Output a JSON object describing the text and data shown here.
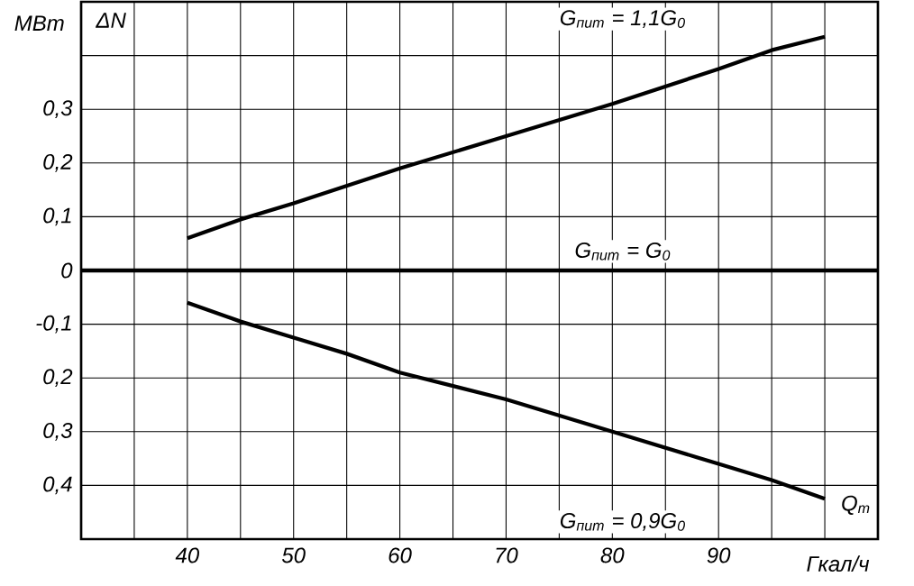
{
  "chart_data": {
    "type": "line",
    "xlabel": "Q$_{т}$",
    "ylabel": "ΔN",
    "annotations": [
      "МВт",
      "Гкал/ч"
    ],
    "xlim": [
      30,
      105
    ],
    "ylim": [
      -0.5,
      0.5
    ],
    "xticks": [
      {
        "value": 35,
        "label": null
      },
      40,
      {
        "value": 45,
        "label": null
      },
      50,
      {
        "value": 55,
        "label": null
      },
      60,
      {
        "value": 65,
        "label": null
      },
      70,
      {
        "value": 75,
        "label": null
      },
      80,
      {
        "value": 85,
        "label": null
      },
      90,
      {
        "value": 95,
        "label": null
      },
      {
        "value": 100,
        "label": null
      }
    ],
    "yticks": [
      {
        "value": 0.4,
        "label": null
      },
      {
        "value": 0.3,
        "label": "0,3"
      },
      {
        "value": 0.2,
        "label": "0,2"
      },
      {
        "value": 0.1,
        "label": "0,1"
      },
      0,
      {
        "value": -0.1,
        "label": "-0,1"
      },
      {
        "value": -0.2,
        "label": "0,2"
      },
      {
        "value": -0.3,
        "label": "0,3"
      },
      {
        "value": -0.4,
        "label": "0,4"
      }
    ],
    "grid": true,
    "legend": false,
    "marker": "none",
    "line_style": "solid",
    "series": [
      {
        "name": "G$_{пит}$ = 1,1G$_{0}$",
        "color": "#000000",
        "x": [
          40,
          45,
          50,
          60,
          70,
          80,
          90,
          95,
          100
        ],
        "values": [
          0.06,
          0.095,
          0.125,
          0.19,
          0.25,
          0.31,
          0.375,
          0.41,
          0.435
        ]
      },
      {
        "name": "G$_{пит}$ = G$_{0}$",
        "color": "#000000",
        "x": [
          30,
          105
        ],
        "values": [
          0,
          0
        ]
      },
      {
        "name": "G$_{пит}$ = 0,9G$_{0}$",
        "color": "#000000",
        "x": [
          40,
          45,
          50,
          55,
          60,
          70,
          80,
          90,
          95,
          100
        ],
        "values": [
          -0.06,
          -0.095,
          -0.125,
          -0.155,
          -0.19,
          -0.24,
          -0.3,
          -0.36,
          -0.39,
          -0.425
        ]
      }
    ]
  }
}
